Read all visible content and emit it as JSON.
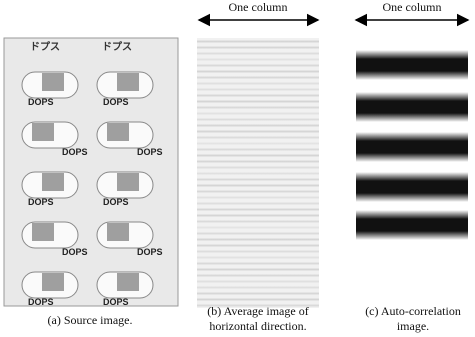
{
  "panels": {
    "a": {
      "caption": "(a) Source image.",
      "header_label": "ドプス",
      "pill_label": "DOPS"
    },
    "b": {
      "column_label": "One column",
      "caption": [
        "(b) Average image of",
        "horizontal direction."
      ]
    },
    "c": {
      "column_label": "One column",
      "caption": [
        "(c) Auto-correlation",
        "image."
      ]
    }
  }
}
